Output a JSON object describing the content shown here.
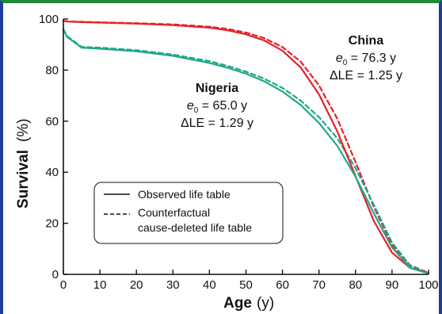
{
  "chart_data": {
    "type": "line",
    "xlabel": "Age",
    "xunit": "(y)",
    "ylabel": "Survival",
    "yunit": "(%)",
    "xlim": [
      0,
      100
    ],
    "ylim": [
      0,
      100
    ],
    "xticks": [
      0,
      10,
      20,
      30,
      40,
      50,
      60,
      70,
      80,
      90,
      100
    ],
    "yticks": [
      0,
      20,
      40,
      60,
      80,
      100
    ],
    "grid": false,
    "legend_position": "lower-left",
    "legend": [
      {
        "label": "Observed life table",
        "style": "solid"
      },
      {
        "label_lines": [
          "Counterfactual",
          "cause-deleted life table"
        ],
        "style": "dashed"
      }
    ],
    "annotations": {
      "china": {
        "name": "China",
        "e0_label": "e",
        "e0_sub": "0",
        "e0_value": " = 76.3 y",
        "dle": "ΔLE = 1.25 y"
      },
      "nigeria": {
        "name": "Nigeria",
        "e0_label": "e",
        "e0_sub": "0",
        "e0_value": " = 65.0 y",
        "dle": "ΔLE = 1.29 y"
      }
    },
    "colors": {
      "china": "#e8202a",
      "nigeria": "#1fa88a",
      "axis": "#111111"
    },
    "series": [
      {
        "key": "china-observed",
        "color_key": "china",
        "style": "solid",
        "x": [
          0,
          1,
          5,
          10,
          20,
          30,
          40,
          45,
          50,
          55,
          60,
          65,
          70,
          75,
          80,
          85,
          90,
          95,
          100
        ],
        "y": [
          99.3,
          99.0,
          98.8,
          98.6,
          98.2,
          97.6,
          96.6,
          95.6,
          94.0,
          91.6,
          87.6,
          81.0,
          70.5,
          56.0,
          38.5,
          21.0,
          8.5,
          2.5,
          0.5
        ]
      },
      {
        "key": "china-counterfactual",
        "color_key": "china",
        "style": "dashed",
        "x": [
          0,
          1,
          5,
          10,
          20,
          30,
          40,
          45,
          50,
          55,
          60,
          65,
          70,
          75,
          80,
          85,
          90,
          95,
          100
        ],
        "y": [
          99.3,
          99.1,
          98.9,
          98.7,
          98.4,
          97.9,
          97.0,
          96.1,
          94.7,
          92.5,
          89.0,
          83.3,
          74.0,
          61.0,
          44.0,
          26.5,
          11.5,
          3.5,
          0.6
        ]
      },
      {
        "key": "nigeria-observed",
        "color_key": "nigeria",
        "style": "solid",
        "x": [
          0,
          1,
          5,
          10,
          20,
          30,
          40,
          45,
          50,
          55,
          60,
          65,
          70,
          75,
          80,
          85,
          90,
          95,
          100
        ],
        "y": [
          96.0,
          93.0,
          88.8,
          88.4,
          87.4,
          85.6,
          82.8,
          80.9,
          78.6,
          75.6,
          71.6,
          66.3,
          59.3,
          50.3,
          38.3,
          24.0,
          10.5,
          2.5,
          0.3
        ]
      },
      {
        "key": "nigeria-counterfactual",
        "color_key": "nigeria",
        "style": "dashed",
        "x": [
          0,
          1,
          5,
          10,
          20,
          30,
          40,
          45,
          50,
          55,
          60,
          65,
          70,
          75,
          80,
          85,
          90,
          95,
          100
        ],
        "y": [
          96.0,
          93.3,
          89.1,
          88.8,
          87.8,
          86.1,
          83.5,
          81.6,
          79.4,
          76.6,
          73.0,
          68.0,
          61.6,
          53.3,
          41.6,
          27.3,
          12.5,
          3.3,
          0.4
        ]
      }
    ]
  }
}
